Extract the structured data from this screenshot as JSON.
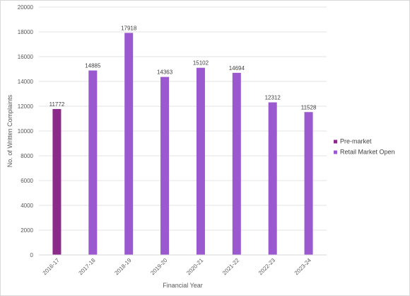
{
  "chart_data": {
    "type": "bar",
    "title": "",
    "xlabel": "Financial Year",
    "ylabel": "No. of Written Complaints",
    "ylim": [
      0,
      20000
    ],
    "yticks": [
      0,
      2000,
      4000,
      6000,
      8000,
      10000,
      12000,
      14000,
      16000,
      18000,
      20000
    ],
    "ytick_labels": [
      "0",
      "2000",
      "4000",
      "6000",
      "8000",
      "10000",
      "12000",
      "14000",
      "16000",
      "18000",
      "20000"
    ],
    "grid": true,
    "legend_position": "right",
    "categories": [
      "2016-17",
      "2017-18",
      "2018-19",
      "2019-20",
      "2020-21",
      "2021-22",
      "2022-23",
      "2023-24"
    ],
    "series": [
      {
        "name": "Pre-market",
        "color": "#8b2a8b",
        "values": [
          11772,
          null,
          null,
          null,
          null,
          null,
          null,
          null
        ]
      },
      {
        "name": "Retail Market Open",
        "color": "#9b59d0",
        "values": [
          null,
          14885,
          17918,
          14363,
          15102,
          14694,
          12312,
          11528
        ]
      }
    ],
    "data_labels": [
      "11772",
      "14885",
      "17918",
      "14363",
      "15102",
      "14694",
      "12312",
      "11528"
    ]
  }
}
